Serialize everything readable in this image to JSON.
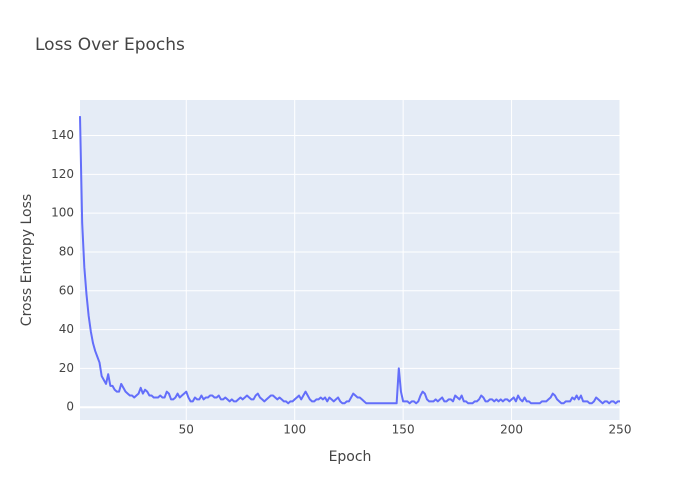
{
  "chart_data": {
    "type": "line",
    "title": "Loss Over Epochs",
    "x_label": "Epoch",
    "y_label": "Cross Entropy Loss",
    "color": "#636efa",
    "grid": true,
    "x": [
      1,
      2,
      3,
      4,
      5,
      6,
      7,
      8,
      9,
      10,
      11,
      12,
      13,
      14,
      15,
      16,
      17,
      18,
      19,
      20,
      21,
      22,
      23,
      24,
      25,
      26,
      27,
      28,
      29,
      30,
      31,
      32,
      33,
      34,
      35,
      36,
      37,
      38,
      39,
      40,
      41,
      42,
      43,
      44,
      45,
      46,
      47,
      48,
      49,
      50,
      51,
      52,
      53,
      54,
      55,
      56,
      57,
      58,
      59,
      60,
      61,
      62,
      63,
      64,
      65,
      66,
      67,
      68,
      69,
      70,
      71,
      72,
      73,
      74,
      75,
      76,
      77,
      78,
      79,
      80,
      81,
      82,
      83,
      84,
      85,
      86,
      87,
      88,
      89,
      90,
      91,
      92,
      93,
      94,
      95,
      96,
      97,
      98,
      99,
      100,
      101,
      102,
      103,
      104,
      105,
      106,
      107,
      108,
      109,
      110,
      111,
      112,
      113,
      114,
      115,
      116,
      117,
      118,
      119,
      120,
      121,
      122,
      123,
      124,
      125,
      126,
      127,
      128,
      129,
      130,
      131,
      132,
      133,
      134,
      135,
      136,
      137,
      138,
      139,
      140,
      141,
      142,
      143,
      144,
      145,
      146,
      147,
      148,
      149,
      150,
      151,
      152,
      153,
      154,
      155,
      156,
      157,
      158,
      159,
      160,
      161,
      162,
      163,
      164,
      165,
      166,
      167,
      168,
      169,
      170,
      171,
      172,
      173,
      174,
      175,
      176,
      177,
      178,
      179,
      180,
      181,
      182,
      183,
      184,
      185,
      186,
      187,
      188,
      189,
      190,
      191,
      192,
      193,
      194,
      195,
      196,
      197,
      198,
      199,
      200,
      201,
      202,
      203,
      204,
      205,
      206,
      207,
      208,
      209,
      210,
      211,
      212,
      213,
      214,
      215,
      216,
      217,
      218,
      219,
      220,
      221,
      222,
      223,
      224,
      225,
      226,
      227,
      228,
      229,
      230,
      231,
      232,
      233,
      234,
      235,
      236,
      237,
      238,
      239,
      240,
      241,
      242,
      243,
      244,
      245,
      246,
      247,
      248,
      249,
      250
    ],
    "values": [
      150,
      95,
      72,
      58,
      47,
      39,
      33,
      29,
      26,
      23,
      16,
      14,
      12,
      17,
      11,
      11,
      9,
      8,
      8,
      12,
      10,
      8,
      7,
      6,
      6,
      5,
      6,
      7,
      10,
      7,
      9,
      8,
      6,
      6,
      5,
      5,
      5,
      6,
      5,
      5,
      8,
      7,
      4,
      4,
      5,
      7,
      5,
      6,
      7,
      8,
      5,
      3,
      3,
      5,
      4,
      4,
      6,
      4,
      5,
      5,
      6,
      6,
      5,
      5,
      6,
      4,
      4,
      5,
      4,
      3,
      4,
      3,
      3,
      4,
      5,
      4,
      5,
      6,
      5,
      4,
      4,
      6,
      7,
      5,
      4,
      3,
      4,
      5,
      6,
      6,
      5,
      4,
      5,
      4,
      3,
      3,
      2,
      3,
      3,
      4,
      5,
      6,
      4,
      6,
      8,
      6,
      4,
      3,
      3,
      4,
      4,
      5,
      4,
      5,
      3,
      5,
      4,
      3,
      4,
      5,
      3,
      2,
      2,
      3,
      3,
      5,
      7,
      6,
      5,
      5,
      4,
      3,
      2,
      2,
      2,
      2,
      2,
      2,
      2,
      2,
      2,
      2,
      2,
      2,
      2,
      2,
      2,
      20,
      8,
      3,
      3,
      3,
      2,
      3,
      3,
      2,
      3,
      6,
      8,
      7,
      4,
      3,
      3,
      3,
      4,
      3,
      4,
      5,
      3,
      3,
      4,
      4,
      3,
      6,
      5,
      4,
      6,
      3,
      3,
      2,
      2,
      2,
      3,
      3,
      4,
      6,
      5,
      3,
      3,
      4,
      4,
      3,
      4,
      3,
      4,
      3,
      4,
      4,
      3,
      4,
      5,
      3,
      6,
      4,
      3,
      5,
      3,
      3,
      2,
      2,
      2,
      2,
      2,
      3,
      3,
      3,
      4,
      5,
      7,
      6,
      4,
      3,
      2,
      2,
      3,
      3,
      3,
      5,
      4,
      6,
      4,
      6,
      3,
      3,
      3,
      2,
      2,
      3,
      5,
      4,
      3,
      2,
      3,
      3,
      2,
      3,
      3,
      2,
      3,
      3
    ],
    "xlim": [
      1,
      250
    ],
    "xticks": [
      50,
      100,
      150,
      200,
      250
    ],
    "ylim": [
      -6.6,
      158.3
    ],
    "yticks": [
      0,
      20,
      40,
      60,
      80,
      100,
      120,
      140
    ]
  }
}
